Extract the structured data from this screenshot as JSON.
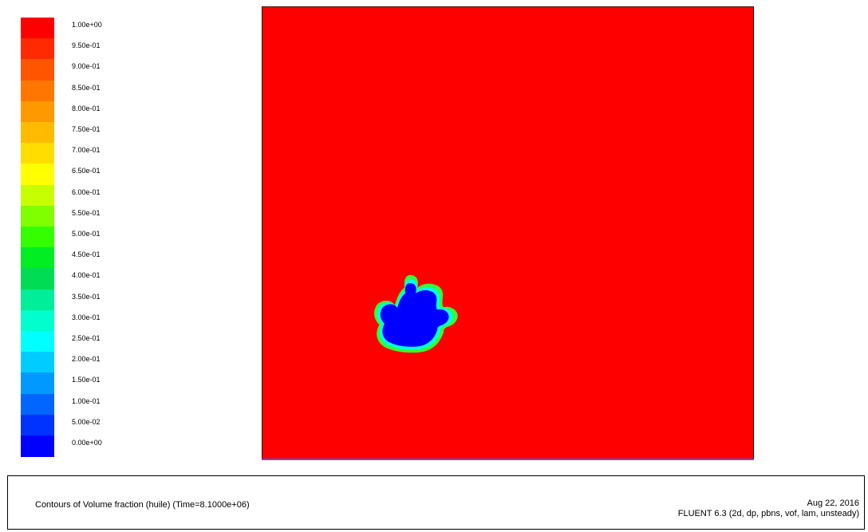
{
  "chart_data": {
    "type": "heatmap",
    "variable": "Volume fraction (huile)",
    "range": [
      0.0,
      1.0
    ],
    "legend": {
      "placement": "left",
      "levels": [
        1.0,
        0.95,
        0.9,
        0.85,
        0.8,
        0.75,
        0.7,
        0.65,
        0.6,
        0.55,
        0.5,
        0.45,
        0.4,
        0.35,
        0.3,
        0.25,
        0.2,
        0.15,
        0.1,
        0.05,
        0.0
      ],
      "tick_labels": [
        "1.00e+00",
        "9.50e-01",
        "9.00e-01",
        "8.50e-01",
        "8.00e-01",
        "7.50e-01",
        "7.00e-01",
        "6.50e-01",
        "6.00e-01",
        "5.50e-01",
        "5.00e-01",
        "4.50e-01",
        "4.00e-01",
        "3.50e-01",
        "3.00e-01",
        "2.50e-01",
        "2.00e-01",
        "1.50e-01",
        "1.00e-01",
        "5.00e-02",
        "0.00e+00"
      ],
      "colors": [
        "#ff0000",
        "#ff2a00",
        "#ff5500",
        "#ff7700",
        "#ff9900",
        "#ffbb00",
        "#ffdd00",
        "#ffff00",
        "#c8ff00",
        "#80ff00",
        "#33ff00",
        "#00ee22",
        "#00dd55",
        "#00ee99",
        "#00ffcc",
        "#00ffff",
        "#00ccff",
        "#0099ff",
        "#0066ff",
        "#0033ff",
        "#0000ff"
      ]
    },
    "field": {
      "background_value": 1.0,
      "region_value": 0.0,
      "region_description": "droplet"
    }
  },
  "footer": {
    "caption": "Contours of Volume fraction (huile)   (Time=8.1000e+06)",
    "date": "Aug 22, 2016",
    "software": "FLUENT 6.3 (2d, dp, pbns, vof, lam, unsteady)"
  }
}
